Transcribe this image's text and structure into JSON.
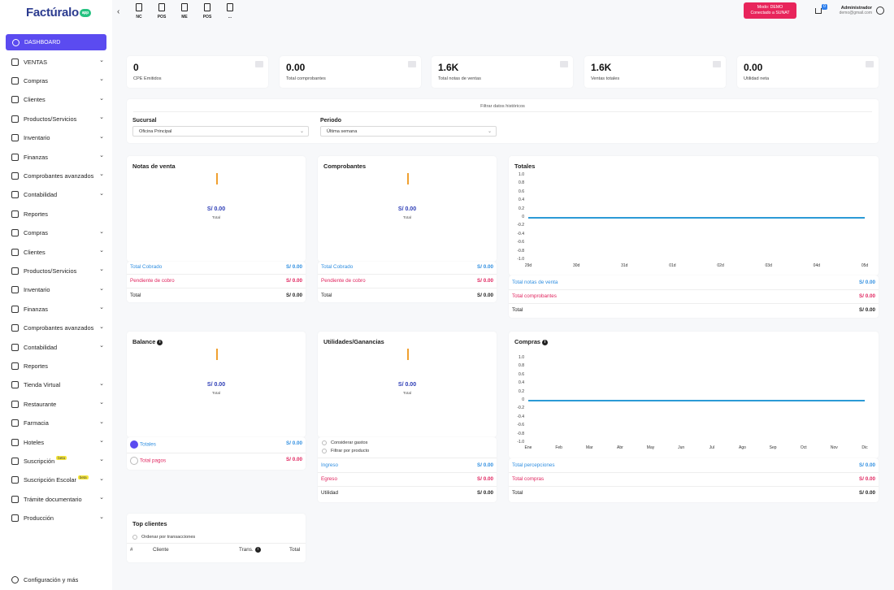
{
  "app": {
    "logo": "Factúralo",
    "logo_badge": "app"
  },
  "sidebar": {
    "dashboard": "DASHBOARD",
    "items": [
      {
        "label": "VENTAS",
        "chev": true,
        "beta": ""
      },
      {
        "label": "Compras",
        "chev": true,
        "beta": ""
      },
      {
        "label": "Clientes",
        "chev": true,
        "beta": ""
      },
      {
        "label": "Productos/Servicios",
        "chev": true,
        "beta": ""
      },
      {
        "label": "Inventario",
        "chev": true,
        "beta": ""
      },
      {
        "label": "Finanzas",
        "chev": true,
        "beta": ""
      },
      {
        "label": "Comprobantes avanzados",
        "chev": true,
        "beta": ""
      },
      {
        "label": "Contabilidad",
        "chev": true,
        "beta": ""
      },
      {
        "label": "Reportes",
        "chev": false,
        "beta": ""
      },
      {
        "label": "Compras",
        "chev": true,
        "beta": ""
      },
      {
        "label": "Clientes",
        "chev": true,
        "beta": ""
      },
      {
        "label": "Productos/Servicios",
        "chev": true,
        "beta": ""
      },
      {
        "label": "Inventario",
        "chev": true,
        "beta": ""
      },
      {
        "label": "Finanzas",
        "chev": true,
        "beta": ""
      },
      {
        "label": "Comprobantes avanzados",
        "chev": true,
        "beta": ""
      },
      {
        "label": "Contabilidad",
        "chev": true,
        "beta": ""
      },
      {
        "label": "Reportes",
        "chev": false,
        "beta": ""
      },
      {
        "label": "Tienda Virtual",
        "chev": true,
        "beta": ""
      },
      {
        "label": "Restaurante",
        "chev": true,
        "beta": ""
      },
      {
        "label": "Farmacia",
        "chev": true,
        "beta": ""
      },
      {
        "label": "Hoteles",
        "chev": true,
        "beta": ""
      },
      {
        "label": "Suscripción",
        "chev": true,
        "beta": "beta"
      },
      {
        "label": "Suscripción Escolar",
        "chev": true,
        "beta": "beta"
      },
      {
        "label": "Trámite documentario",
        "chev": true,
        "beta": ""
      },
      {
        "label": "Producción",
        "chev": true,
        "beta": ""
      }
    ],
    "config": "Configuración y más"
  },
  "topbar": {
    "quick": [
      "NC",
      "POS",
      "ME",
      "POS",
      "..."
    ],
    "mode_line1": "Modo: DEMO",
    "mode_line2": "Conectado a SUNAT",
    "cart_count": "0",
    "user_name": "Administrador",
    "user_mail": "demo@gmail.com"
  },
  "stats": [
    {
      "value": "0",
      "label": "CPE Emitidos"
    },
    {
      "value": "0.00",
      "label": "Total comprobantes"
    },
    {
      "value": "1.6K",
      "label": "Total notas de ventas"
    },
    {
      "value": "1.6K",
      "label": "Ventas totales"
    },
    {
      "value": "0.00",
      "label": "Utilidad neta"
    }
  ],
  "filter": {
    "title": "Filtrar datos históricos",
    "sucursal_label": "Sucursal",
    "sucursal_value": "Oficina Principal",
    "periodo_label": "Periodo",
    "periodo_value": "Última semana"
  },
  "notas": {
    "title": "Notas de venta",
    "value": "S/ 0.00",
    "sub": "Total",
    "rows": [
      {
        "k": "Total Cobrado",
        "v": "S/ 0.00"
      },
      {
        "k": "Pendiente de cobro",
        "v": "S/ 0.00"
      },
      {
        "k": "Total",
        "v": "S/ 0.00"
      }
    ]
  },
  "comprobantes": {
    "title": "Comprobantes",
    "value": "S/ 0.00",
    "sub": "Total",
    "rows": [
      {
        "k": "Total Cobrado",
        "v": "S/ 0.00"
      },
      {
        "k": "Pendiente de cobro",
        "v": "S/ 0.00"
      },
      {
        "k": "Total",
        "v": "S/ 0.00"
      }
    ]
  },
  "totales": {
    "title": "Totales",
    "rows": [
      {
        "k": "Total notas de venta",
        "v": "S/ 0.00"
      },
      {
        "k": "Total comprobantes",
        "v": "S/ 0.00"
      },
      {
        "k": "Total",
        "v": "S/ 0.00"
      }
    ]
  },
  "balance": {
    "title": "Balance",
    "value": "S/ 0.00",
    "sub": "Total",
    "rows": [
      {
        "k": "Totales",
        "v": "S/ 0.00"
      },
      {
        "k": "Total pagos",
        "v": "S/ 0.00"
      }
    ]
  },
  "utilidades": {
    "title": "Utilidades/Ganancias",
    "value": "S/ 0.00",
    "sub": "Total",
    "check1": "Considerar gastos",
    "check2": "Filtrar por producto",
    "rows": [
      {
        "k": "Ingreso",
        "v": "S/ 0.00"
      },
      {
        "k": "Egreso",
        "v": "S/ 0.00"
      },
      {
        "k": "Utilidad",
        "v": "S/ 0.00"
      }
    ]
  },
  "compras": {
    "title": "Compras",
    "rows": [
      {
        "k": "Total percepciones",
        "v": "S/ 0.00"
      },
      {
        "k": "Total compras",
        "v": "S/ 0.00"
      },
      {
        "k": "Total",
        "v": "S/ 0.00"
      }
    ]
  },
  "top_clientes": {
    "title": "Top clientes",
    "check": "Ordenar por transacciones",
    "headers": [
      "#",
      "Cliente",
      "Trans.",
      "Total"
    ]
  },
  "colors": {
    "accent": "#5b4bf0",
    "blue": "#2f8ee0",
    "pink": "#e0245e",
    "line": "#2b9ad6",
    "mode_badge": "#e8245b"
  },
  "chart_data": [
    {
      "type": "line",
      "title": "Totales",
      "x": [
        "29d",
        "30d",
        "31d",
        "01d",
        "02d",
        "03d",
        "04d",
        "05d"
      ],
      "y_ticks": [
        "1.0",
        "0.8",
        "0.6",
        "0.4",
        "0.2",
        "0",
        "-0.2",
        "-0.4",
        "-0.6",
        "-0.8",
        "-1.0"
      ],
      "ylim": [
        -1.0,
        1.0
      ],
      "series": [
        {
          "values": [
            0,
            0,
            0,
            0,
            0,
            0,
            0,
            0
          ]
        }
      ]
    },
    {
      "type": "line",
      "title": "Compras",
      "x": [
        "Ene",
        "Feb",
        "Mar",
        "Abr",
        "May",
        "Jun",
        "Jul",
        "Ago",
        "Sep",
        "Oct",
        "Nov",
        "Dic"
      ],
      "y_ticks": [
        "1.0",
        "0.8",
        "0.6",
        "0.4",
        "0.2",
        "0",
        "-0.2",
        "-0.4",
        "-0.6",
        "-0.8",
        "-1.0"
      ],
      "ylim": [
        -1.0,
        1.0
      ],
      "series": [
        {
          "values": [
            0,
            0,
            0,
            0,
            0,
            0,
            0,
            0,
            0,
            0,
            0,
            0
          ]
        }
      ]
    }
  ]
}
